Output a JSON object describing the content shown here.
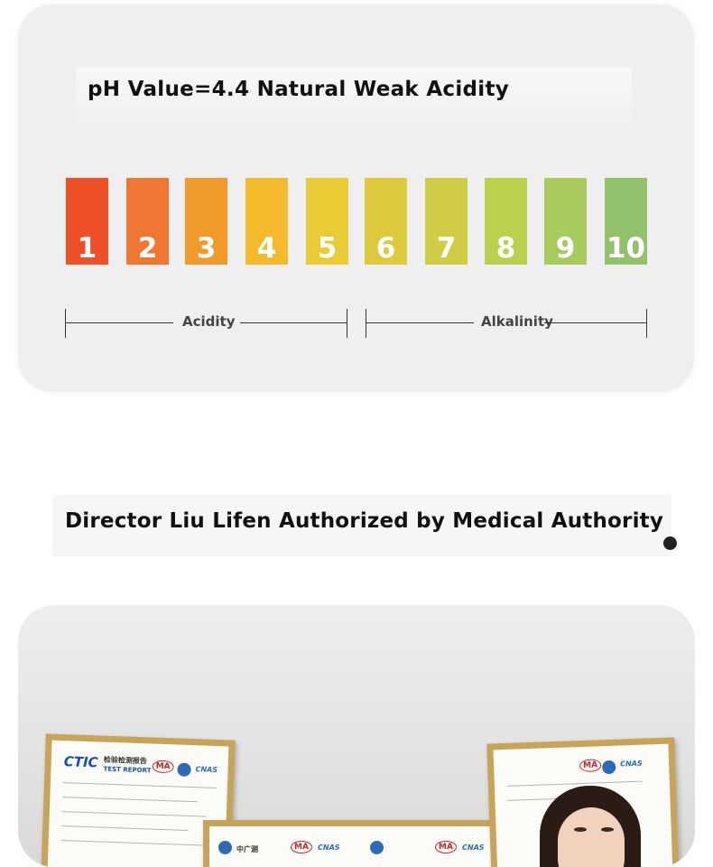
{
  "ph_section": {
    "title": "pH Value=4.4 Natural Weak Acidity",
    "scale": [
      {
        "label": "1",
        "color": "#ef5028"
      },
      {
        "label": "2",
        "color": "#f07633"
      },
      {
        "label": "3",
        "color": "#f09a2c"
      },
      {
        "label": "4",
        "color": "#f5b92c"
      },
      {
        "label": "5",
        "color": "#e8cb35"
      },
      {
        "label": "6",
        "color": "#dcc93c"
      },
      {
        "label": "7",
        "color": "#cfcd43"
      },
      {
        "label": "8",
        "color": "#bcd04f"
      },
      {
        "label": "9",
        "color": "#a7cb5d"
      },
      {
        "label": "10",
        "color": "#93c06a"
      }
    ],
    "acidity_label": "Acidity",
    "alkalinity_label": "Alkalinity"
  },
  "headline": "Director Liu Lifen Authorized by Medical Authority",
  "certificates": {
    "left": {
      "brand": "CTIC",
      "sub": "TEST REPORT",
      "cn": "检验检测报告",
      "ma": "MA",
      "cnas": "CNAS"
    },
    "middle": {
      "cn": "中广测",
      "ma": "MA",
      "cnas": "CNAS"
    },
    "right": {
      "ma": "MA",
      "cnas": "CNAS"
    }
  }
}
